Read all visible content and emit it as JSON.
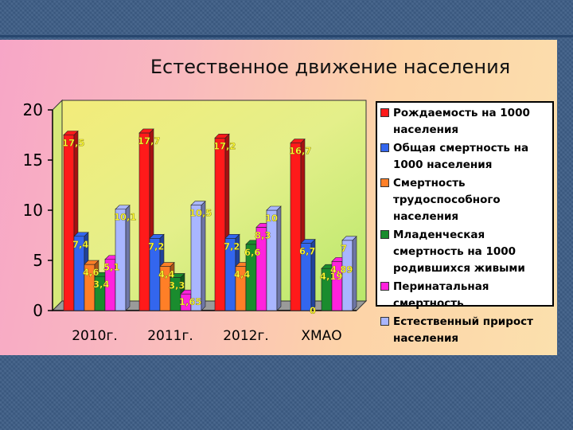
{
  "chart_data": {
    "type": "bar",
    "title": "Естественное движение населения",
    "xlabel": "",
    "ylabel": "",
    "ylim": [
      0,
      20
    ],
    "yticks": [
      0,
      5,
      10,
      15,
      20
    ],
    "grid": false,
    "legend_position": "right",
    "categories": [
      "2010г.",
      "2011г.",
      "2012г.",
      "ХМАО"
    ],
    "series": [
      {
        "name": "Рождаемость на 1000 населения",
        "color": "#ff1a1a",
        "values": [
          17.5,
          17.7,
          17.2,
          16.7
        ],
        "labels": [
          "17,5",
          "17,7",
          "17,2",
          "16,7"
        ]
      },
      {
        "name": "Общая смертность на 1000 населения",
        "color": "#3366ee",
        "values": [
          7.4,
          7.2,
          7.2,
          6.7
        ],
        "labels": [
          "7,4",
          "7,2",
          "7,2",
          "6,7"
        ]
      },
      {
        "name": "Смертность трудоспособного населения",
        "color": "#ff7f27",
        "values": [
          4.6,
          4.4,
          4.4,
          0
        ],
        "labels": [
          "4,6",
          "4,4",
          "4,4",
          "0"
        ]
      },
      {
        "name": "Младенческая смертность на 1000 родившихся живыми",
        "color": "#1a8c2e",
        "values": [
          3.4,
          3.3,
          6.6,
          4.19
        ],
        "labels": [
          "3,4",
          "3,3",
          "6,6",
          "4,19"
        ]
      },
      {
        "name": "Перинатальная смертность",
        "color": "#ff22dd",
        "values": [
          5.1,
          1.65,
          8.3,
          4.89
        ],
        "labels": [
          "5,1",
          "1,65",
          "8,3",
          "4,89"
        ]
      },
      {
        "name": "Естественный прирост населения",
        "color": "#a9b6ff",
        "values": [
          10.1,
          10.5,
          10,
          7
        ],
        "labels": [
          "10,1",
          "10,5",
          "10",
          "7"
        ]
      }
    ]
  }
}
